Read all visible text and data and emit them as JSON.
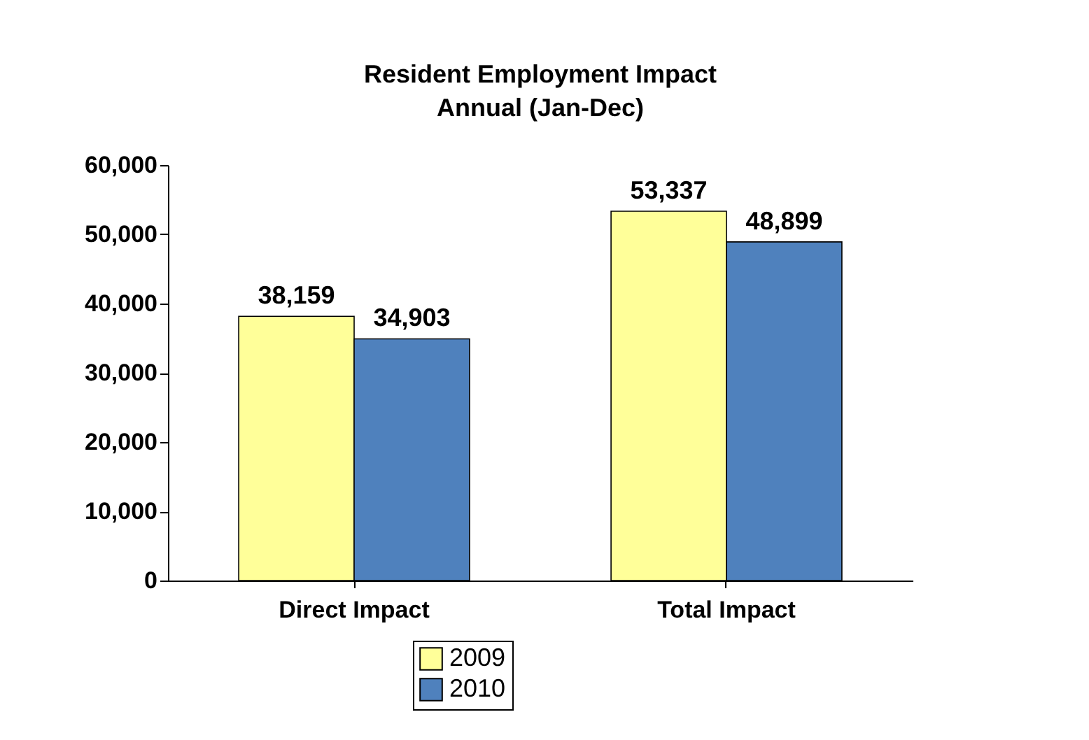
{
  "chart_data": {
    "type": "bar",
    "title": "Resident Employment Impact",
    "subtitle": "Annual (Jan-Dec)",
    "categories": [
      "Direct Impact",
      "Total Impact"
    ],
    "series": [
      {
        "name": "2009",
        "color": "#ffff99",
        "values": [
          38159,
          53337
        ],
        "value_labels": [
          "38,159",
          "53,337"
        ]
      },
      {
        "name": "2010",
        "color": "#4f81bd",
        "values": [
          34903,
          48899
        ],
        "value_labels": [
          "34,903",
          "48,899"
        ]
      }
    ],
    "ylim": [
      0,
      60000
    ],
    "yticks": [
      {
        "value": 0,
        "label": "0"
      },
      {
        "value": 10000,
        "label": "10,000"
      },
      {
        "value": 20000,
        "label": "20,000"
      },
      {
        "value": 30000,
        "label": "30,000"
      },
      {
        "value": 40000,
        "label": "40,000"
      },
      {
        "value": 50000,
        "label": "50,000"
      },
      {
        "value": 60000,
        "label": "60,000"
      }
    ],
    "grid": false,
    "legend": "bottom"
  }
}
